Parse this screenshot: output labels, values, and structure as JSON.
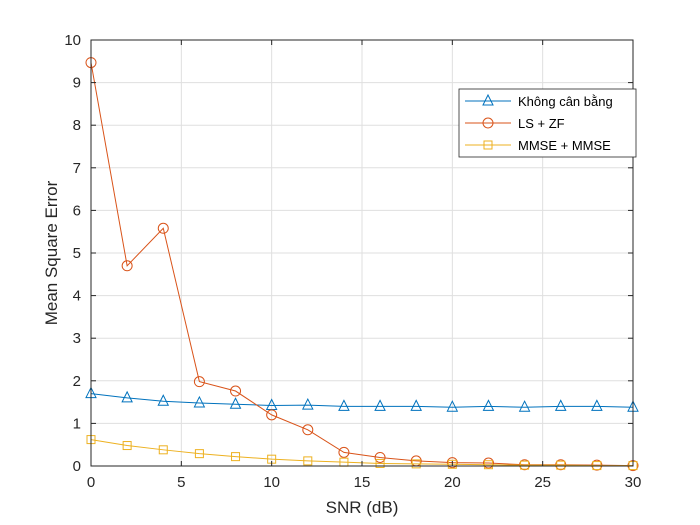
{
  "chart_data": {
    "type": "line",
    "xlabel": "SNR (dB)",
    "ylabel": "Mean Square Error",
    "xlim": [
      0,
      30
    ],
    "ylim": [
      0,
      10
    ],
    "xticks": [
      0,
      5,
      10,
      15,
      20,
      25,
      30
    ],
    "yticks": [
      0,
      1,
      2,
      3,
      4,
      5,
      6,
      7,
      8,
      9,
      10
    ],
    "xtick_labels": [
      "0",
      "5",
      "10",
      "15",
      "20",
      "25",
      "30"
    ],
    "ytick_labels": [
      "0",
      "1",
      "2",
      "3",
      "4",
      "5",
      "6",
      "7",
      "8",
      "9",
      "10"
    ],
    "grid": true,
    "legend_position": "top-right",
    "x": [
      0,
      2,
      4,
      6,
      8,
      10,
      12,
      14,
      16,
      18,
      20,
      22,
      24,
      26,
      28,
      30
    ],
    "series": [
      {
        "name": "Không cân bằng",
        "color": "#0072BD",
        "marker": "triangle",
        "values": [
          1.7,
          1.6,
          1.52,
          1.48,
          1.45,
          1.42,
          1.43,
          1.4,
          1.4,
          1.4,
          1.38,
          1.4,
          1.38,
          1.4,
          1.4,
          1.38
        ]
      },
      {
        "name": "LS + ZF",
        "color": "#D95319",
        "marker": "circle",
        "values": [
          9.47,
          4.7,
          5.58,
          1.98,
          1.76,
          1.2,
          0.85,
          0.32,
          0.2,
          0.12,
          0.08,
          0.07,
          0.03,
          0.03,
          0.02,
          0.01
        ]
      },
      {
        "name": "MMSE + MMSE",
        "color": "#EDB120",
        "marker": "square",
        "values": [
          0.62,
          0.48,
          0.38,
          0.29,
          0.22,
          0.16,
          0.12,
          0.09,
          0.06,
          0.05,
          0.04,
          0.03,
          0.02,
          0.02,
          0.01,
          0.01
        ]
      }
    ]
  }
}
